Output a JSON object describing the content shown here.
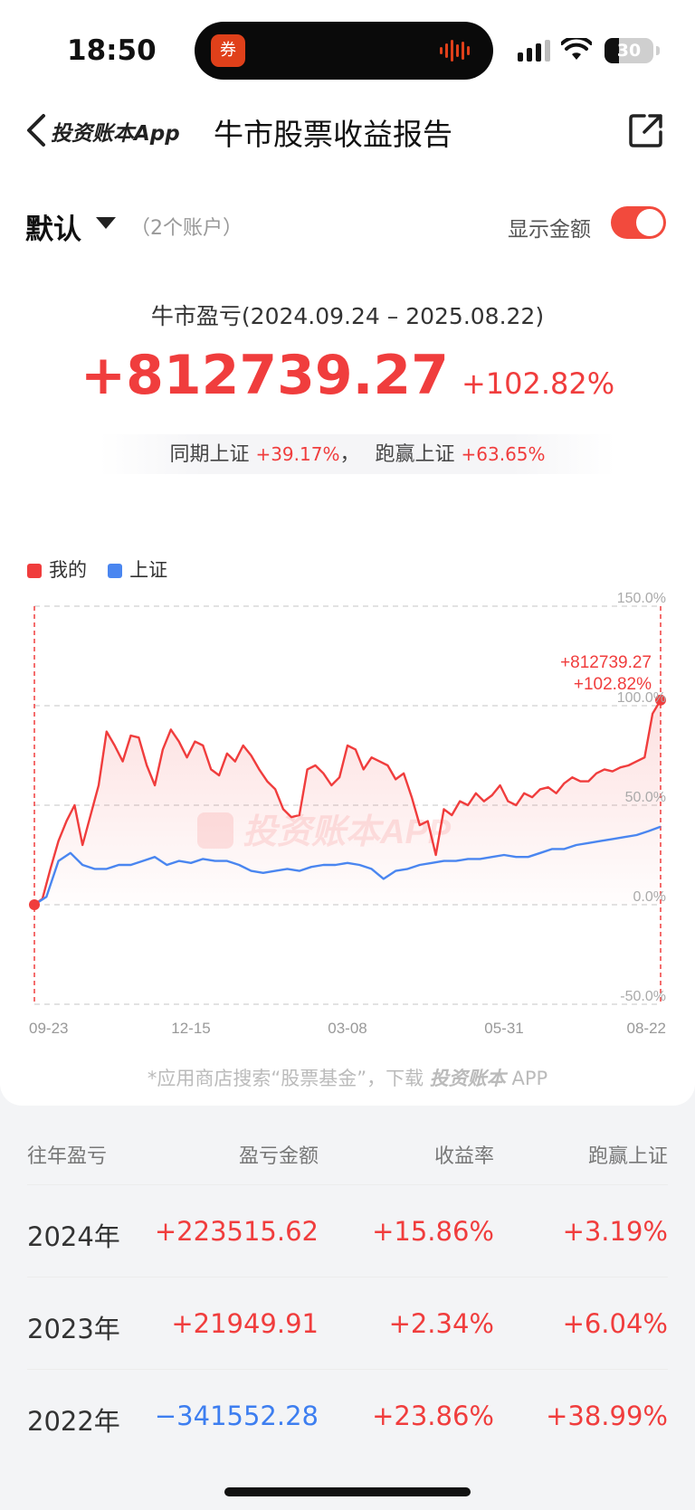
{
  "status_bar": {
    "time": "18:50",
    "battery_level": 30,
    "battery_text": "30",
    "island_app_glyph": "券"
  },
  "nav": {
    "back_app_label": "投资账本App",
    "title": "牛市股票收益报告"
  },
  "account": {
    "name": "默认",
    "count": "（2个账户）",
    "show_amount_label": "显示金额",
    "show_amount_on": true
  },
  "summary": {
    "period": "牛市盈亏(2024.09.24 – 2025.08.22)",
    "amount": "+812739.27",
    "percent": "+102.82%",
    "same_period_label": "同期上证",
    "same_period_value": "+39.17%",
    "separator": "，",
    "outperform_label": "跑赢上证",
    "outperform_value": "+63.65%"
  },
  "legend": {
    "mine": "我的",
    "index": "上证"
  },
  "colors": {
    "mine": "#f03d3d",
    "index": "#4a86f0"
  },
  "chart_data": {
    "type": "line",
    "x_tick_labels": [
      "09-23",
      "12-15",
      "03-08",
      "05-31",
      "08-22"
    ],
    "y_tick_labels": [
      "150.0%",
      "100.0%",
      "50.0%",
      "0.0%",
      "-50.0%"
    ],
    "ylim": [
      -50,
      150
    ],
    "end_label_amount": "+812739.27",
    "end_label_percent": "+102.82%",
    "watermark": "投资账本APP",
    "series": [
      {
        "name": "我的",
        "values": [
          0,
          3,
          18,
          32,
          42,
          50,
          30,
          45,
          60,
          87,
          80,
          72,
          85,
          84,
          70,
          60,
          78,
          88,
          82,
          74,
          82,
          80,
          68,
          65,
          76,
          72,
          80,
          75,
          68,
          62,
          58,
          48,
          44,
          45,
          68,
          70,
          66,
          60,
          64,
          80,
          78,
          68,
          74,
          72,
          70,
          63,
          66,
          54,
          40,
          42,
          25,
          48,
          45,
          52,
          50,
          56,
          52,
          55,
          60,
          52,
          50,
          56,
          54,
          58,
          59,
          56,
          61,
          64,
          62,
          62,
          66,
          68,
          67,
          69,
          70,
          72,
          74,
          96,
          102.82
        ]
      },
      {
        "name": "上证",
        "values": [
          0,
          4,
          22,
          26,
          20,
          18,
          18,
          20,
          20,
          22,
          24,
          20,
          22,
          21,
          23,
          22,
          22,
          20,
          17,
          16,
          17,
          18,
          17,
          19,
          20,
          20,
          21,
          20,
          18,
          13,
          17,
          18,
          20,
          21,
          22,
          22,
          23,
          23,
          24,
          25,
          24,
          24,
          26,
          28,
          28,
          30,
          31,
          32,
          33,
          34,
          35,
          37,
          39.17
        ]
      }
    ]
  },
  "promo": {
    "prefix": "*应用商店搜索“股票基金”，下载",
    "brand": "投资账本",
    "suffix": " APP"
  },
  "table": {
    "headers": [
      "往年盈亏",
      "盈亏金额",
      "收益率",
      "跑赢上证"
    ],
    "rows": [
      {
        "year": "2024年",
        "amount": "+223515.62",
        "rate": "+15.86%",
        "beat": "+3.19%"
      },
      {
        "year": "2023年",
        "amount": "+21949.91",
        "rate": "+2.34%",
        "beat": "+6.04%"
      },
      {
        "year": "2022年",
        "amount": "−341552.28",
        "rate": "+23.86%",
        "beat": "+38.99%"
      }
    ]
  }
}
